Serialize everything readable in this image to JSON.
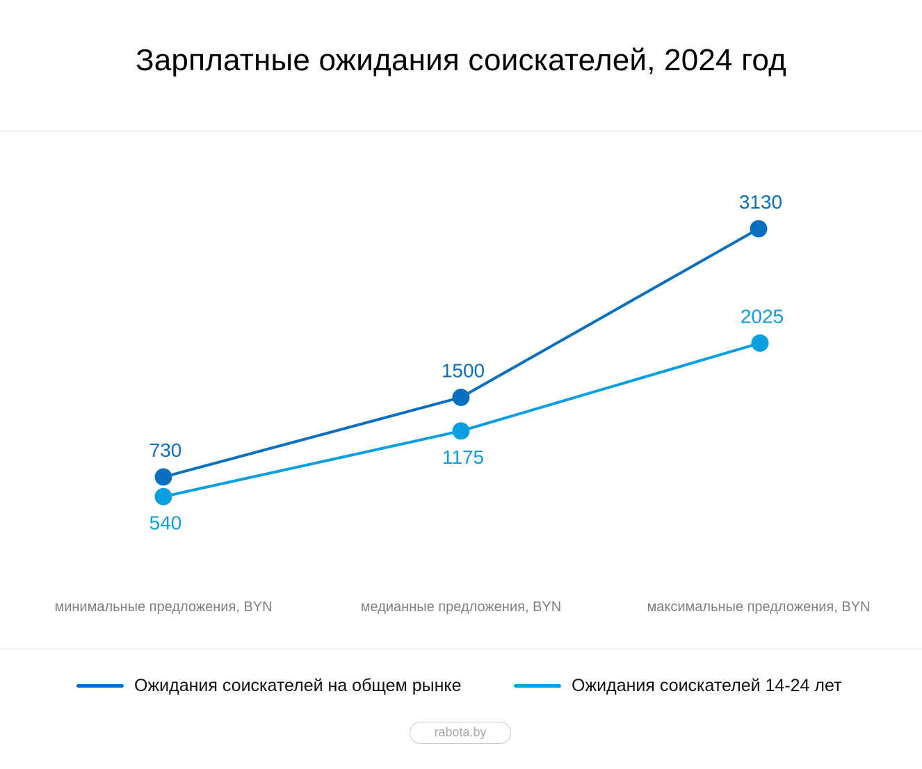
{
  "header": {
    "title": "Зарплатные ожидания соискателей, 2024 год"
  },
  "colors": {
    "series_general": "#0a6fbe",
    "series_young": "#0aa0e0",
    "category_label": "#808080",
    "divider": "#e2e2e2"
  },
  "chart_data": {
    "type": "line",
    "categories": [
      "минимальные предложения, BYN",
      "медианные предложения, BYN",
      "максимальные предложения, BYN"
    ],
    "series": [
      {
        "name": "Ожидания соискателей на общем рынке",
        "values": [
          730,
          1500,
          3130
        ],
        "labels": [
          "730",
          "1500",
          "3130"
        ],
        "color": "#0a6fbe",
        "label_position": "above"
      },
      {
        "name": "Ожидания соискателей 14-24 лет",
        "values": [
          540,
          1175,
          2025
        ],
        "labels": [
          "540",
          "1175",
          "2025"
        ],
        "color": "#0aa0e0",
        "label_position": "below-except-last"
      }
    ],
    "y_axis_visible": false,
    "grid": false,
    "legend_position": "bottom"
  },
  "footer": {
    "source": "rabota.by"
  }
}
